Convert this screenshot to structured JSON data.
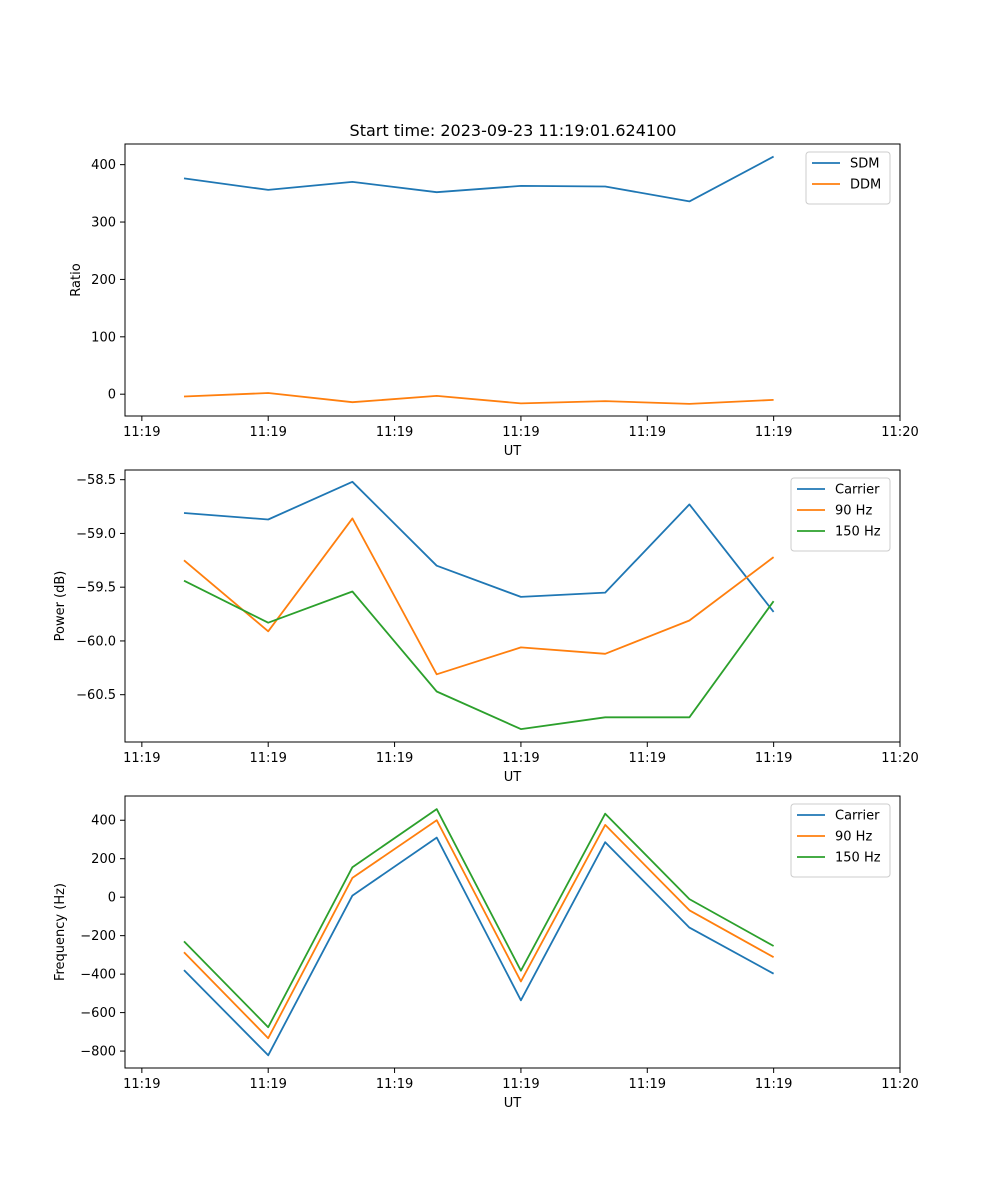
{
  "figure": {
    "title": "Start time: 2023-09-23 11:19:01.624100"
  },
  "chart_data": [
    {
      "type": "line",
      "id": "ratio",
      "xlabel": "UT",
      "ylabel": "Ratio",
      "x": [
        1,
        2,
        3,
        4,
        5,
        6,
        7,
        8
      ],
      "xlim": [
        0.3,
        9.5
      ],
      "xticks": [
        0.5,
        2.0,
        3.5,
        5.0,
        6.5,
        8.0,
        9.5
      ],
      "xtick_labels": [
        "11:19",
        "11:19",
        "11:19",
        "11:19",
        "11:19",
        "11:19",
        "11:20"
      ],
      "ylim": [
        -38,
        436
      ],
      "yticks": [
        0,
        100,
        200,
        300,
        400
      ],
      "ytick_labels": [
        "0",
        "100",
        "200",
        "300",
        "400"
      ],
      "legend_loc": "upper right",
      "series": [
        {
          "name": "SDM",
          "color": "#1f77b4",
          "values": [
            376,
            356,
            370,
            352,
            363,
            362,
            336,
            414
          ]
        },
        {
          "name": "DDM",
          "color": "#ff7f0e",
          "values": [
            -4,
            2,
            -14,
            -3,
            -16,
            -12,
            -17,
            -10
          ]
        }
      ]
    },
    {
      "type": "line",
      "id": "power",
      "xlabel": "UT",
      "ylabel": "Power (dB)",
      "x": [
        1,
        2,
        3,
        4,
        5,
        6,
        7,
        8
      ],
      "xlim": [
        0.3,
        9.5
      ],
      "xticks": [
        0.5,
        2.0,
        3.5,
        5.0,
        6.5,
        8.0,
        9.5
      ],
      "xtick_labels": [
        "11:19",
        "11:19",
        "11:19",
        "11:19",
        "11:19",
        "11:19",
        "11:20"
      ],
      "ylim": [
        -60.94,
        -58.41
      ],
      "yticks": [
        -58.5,
        -59.0,
        -59.5,
        -60.0,
        -60.5
      ],
      "ytick_labels": [
        "−58.5",
        "−59.0",
        "−59.5",
        "−60.0",
        "−60.5"
      ],
      "legend_loc": "upper right",
      "series": [
        {
          "name": "Carrier",
          "color": "#1f77b4",
          "values": [
            -58.81,
            -58.87,
            -58.52,
            -59.3,
            -59.59,
            -59.55,
            -58.73,
            -59.73
          ]
        },
        {
          "name": "90 Hz",
          "color": "#ff7f0e",
          "values": [
            -59.25,
            -59.91,
            -58.86,
            -60.31,
            -60.06,
            -60.12,
            -59.81,
            -59.22
          ]
        },
        {
          "name": "150 Hz",
          "color": "#2ca02c",
          "values": [
            -59.44,
            -59.83,
            -59.54,
            -60.47,
            -60.82,
            -60.71,
            -60.71,
            -59.63
          ]
        }
      ]
    },
    {
      "type": "line",
      "id": "frequency",
      "xlabel": "UT",
      "ylabel": "Frequency (Hz)",
      "x": [
        1,
        2,
        3,
        4,
        5,
        6,
        7,
        8
      ],
      "xlim": [
        0.3,
        9.5
      ],
      "xticks": [
        0.5,
        2.0,
        3.5,
        5.0,
        6.5,
        8.0,
        9.5
      ],
      "xtick_labels": [
        "11:19",
        "11:19",
        "11:19",
        "11:19",
        "11:19",
        "11:19",
        "11:20"
      ],
      "ylim": [
        -888,
        526
      ],
      "yticks": [
        400,
        200,
        0,
        -200,
        -400,
        -600,
        -800
      ],
      "ytick_labels": [
        "400",
        "200",
        "0",
        "−200",
        "−400",
        "−600",
        "−800"
      ],
      "legend_loc": "upper right",
      "series": [
        {
          "name": "Carrier",
          "color": "#1f77b4",
          "values": [
            -379,
            -822,
            8,
            310,
            -536,
            286,
            -158,
            -398
          ]
        },
        {
          "name": "90 Hz",
          "color": "#ff7f0e",
          "values": [
            -286,
            -733,
            100,
            400,
            -438,
            376,
            -68,
            -312
          ]
        },
        {
          "name": "150 Hz",
          "color": "#2ca02c",
          "values": [
            -230,
            -676,
            156,
            458,
            -382,
            434,
            -10,
            -254
          ]
        }
      ]
    }
  ]
}
